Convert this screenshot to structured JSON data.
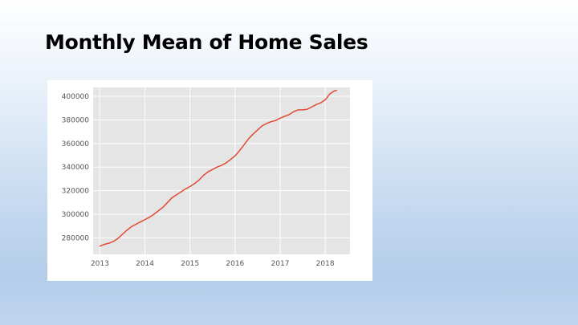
{
  "slide": {
    "title": "Monthly Mean of Home Sales"
  },
  "colors": {
    "line": "#e24a33",
    "plot_bg": "#e5e5e5",
    "grid": "#ffffff"
  },
  "chart_data": {
    "type": "line",
    "title": "",
    "xlabel": "",
    "ylabel": "",
    "grid": true,
    "xlim": [
      2012.85,
      2018.55
    ],
    "ylim": [
      266000,
      407500
    ],
    "xticks": [
      2013,
      2014,
      2015,
      2016,
      2017,
      2018
    ],
    "xtick_labels": [
      "2013",
      "2014",
      "2015",
      "2016",
      "2017",
      "2018"
    ],
    "yticks": [
      280000,
      300000,
      320000,
      340000,
      360000,
      380000,
      400000
    ],
    "ytick_labels": [
      "280000",
      "300000",
      "320000",
      "340000",
      "360000",
      "380000",
      "400000"
    ],
    "series": [
      {
        "x": [
          2013.0,
          2013.1,
          2013.2,
          2013.3,
          2013.4,
          2013.5,
          2013.6,
          2013.7,
          2013.8,
          2013.9,
          2014.0,
          2014.1,
          2014.2,
          2014.3,
          2014.4,
          2014.5,
          2014.6,
          2014.7,
          2014.8,
          2014.9,
          2015.0,
          2015.1,
          2015.2,
          2015.3,
          2015.4,
          2015.5,
          2015.6,
          2015.7,
          2015.8,
          2015.9,
          2016.0,
          2016.1,
          2016.2,
          2016.3,
          2016.4,
          2016.5,
          2016.6,
          2016.7,
          2016.8,
          2016.9,
          2017.0,
          2017.1,
          2017.2,
          2017.3,
          2017.4,
          2017.5,
          2017.6,
          2017.7,
          2017.8,
          2017.9,
          2018.0,
          2018.1,
          2018.2,
          2018.25
        ],
        "y": [
          273000,
          274500,
          275500,
          277000,
          279500,
          283000,
          286500,
          289500,
          291500,
          293500,
          295500,
          297500,
          300000,
          303000,
          306000,
          310000,
          314000,
          316500,
          319000,
          321500,
          323500,
          326000,
          329000,
          333000,
          336000,
          338000,
          340000,
          341500,
          343500,
          346500,
          349500,
          354000,
          359000,
          364000,
          368000,
          371500,
          375000,
          377000,
          378500,
          379500,
          381500,
          383000,
          384500,
          387000,
          388500,
          388500,
          389000,
          391000,
          393000,
          394500,
          397000,
          402000,
          404500,
          405000
        ]
      }
    ]
  }
}
